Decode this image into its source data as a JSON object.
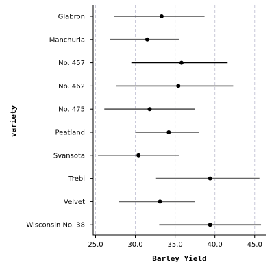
{
  "chart_data": {
    "type": "errorbar",
    "xlabel": "Barley Yield",
    "ylabel": "variety",
    "xlim": [
      24.7,
      46.4
    ],
    "xticks": [
      25.0,
      30.0,
      35.0,
      40.0,
      45.0
    ],
    "xtick_labels": [
      "25.0",
      "30.0",
      "35.0",
      "40.0",
      "45.0"
    ],
    "grid": "vertical dashed",
    "categories": [
      "Glabron",
      "Manchuria",
      "No. 457",
      "No. 462",
      "No. 475",
      "Peatland",
      "Svansota",
      "Trebi",
      "Velvet",
      "Wisconsin No. 38"
    ],
    "center": [
      33.3,
      31.5,
      35.8,
      35.4,
      31.8,
      34.2,
      30.4,
      39.4,
      33.1,
      39.4
    ],
    "low": [
      27.3,
      26.8,
      29.5,
      27.6,
      26.1,
      30.0,
      25.3,
      32.6,
      27.9,
      33.0
    ],
    "high": [
      38.7,
      35.5,
      41.6,
      42.3,
      37.5,
      38.0,
      35.5,
      45.6,
      37.5,
      45.8
    ],
    "colors": {
      "default_bar": "#666666",
      "highlight_bar": "#000000",
      "point": "#000000",
      "grid": "#c8c8d8"
    },
    "highlighted": [
      "No. 457",
      "Svansota"
    ]
  }
}
